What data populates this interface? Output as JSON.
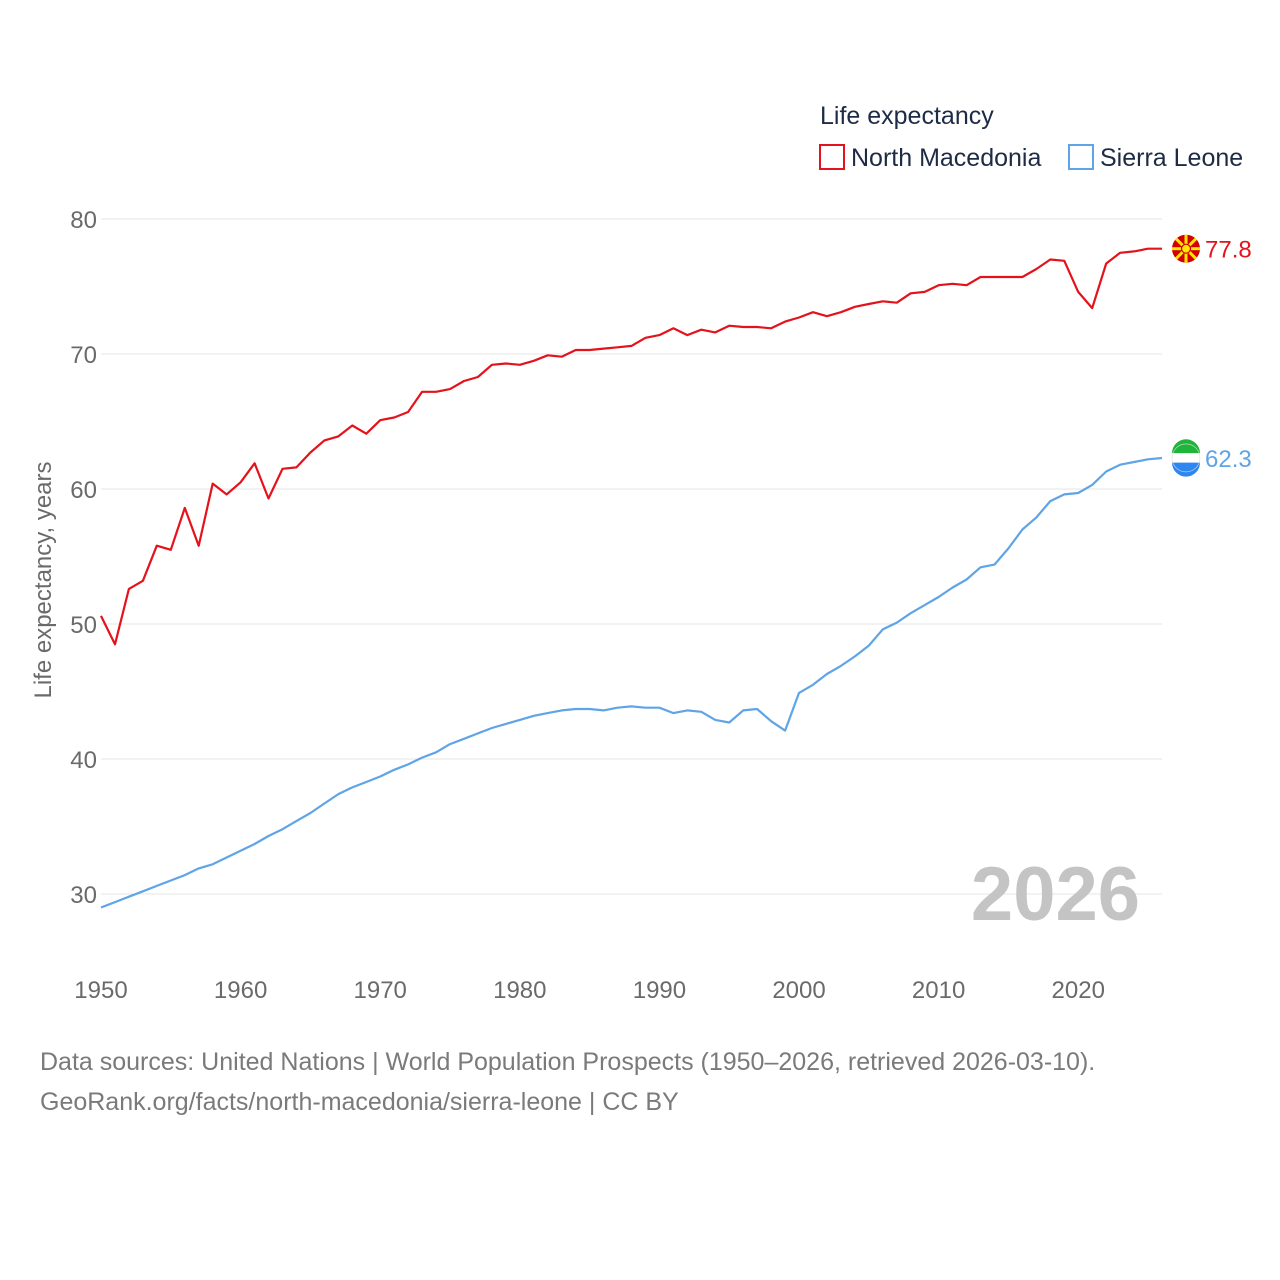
{
  "chart_data": {
    "type": "line",
    "title": "",
    "xlabel": "",
    "ylabel": "Life expectancy, years",
    "xlim": [
      1950,
      2026
    ],
    "ylim": [
      25,
      83
    ],
    "xticks": [
      1950,
      1960,
      1970,
      1980,
      1990,
      2000,
      2010,
      2020
    ],
    "yticks": [
      30,
      40,
      50,
      60,
      70,
      80
    ],
    "grid": true,
    "legend": {
      "title": "Life expectancy",
      "position": "top-right"
    },
    "watermark_year": "2026",
    "x": [
      1950,
      1951,
      1952,
      1953,
      1954,
      1955,
      1956,
      1957,
      1958,
      1959,
      1960,
      1961,
      1962,
      1963,
      1964,
      1965,
      1966,
      1967,
      1968,
      1969,
      1970,
      1971,
      1972,
      1973,
      1974,
      1975,
      1976,
      1977,
      1978,
      1979,
      1980,
      1981,
      1982,
      1983,
      1984,
      1985,
      1986,
      1987,
      1988,
      1989,
      1990,
      1991,
      1992,
      1993,
      1994,
      1995,
      1996,
      1997,
      1998,
      1999,
      2000,
      2001,
      2002,
      2003,
      2004,
      2005,
      2006,
      2007,
      2008,
      2009,
      2010,
      2011,
      2012,
      2013,
      2014,
      2015,
      2016,
      2017,
      2018,
      2019,
      2020,
      2021,
      2022,
      2023,
      2024,
      2025,
      2026
    ],
    "series": [
      {
        "name": "North Macedonia",
        "color": "#e4121b",
        "end_label": "77.8",
        "flag": "north-macedonia-flag-icon",
        "values": [
          50.6,
          48.5,
          52.6,
          53.2,
          55.8,
          55.5,
          58.6,
          55.8,
          60.4,
          59.6,
          60.5,
          61.9,
          59.3,
          61.5,
          61.6,
          62.7,
          63.6,
          63.9,
          64.7,
          64.1,
          65.1,
          65.3,
          65.7,
          67.2,
          67.2,
          67.4,
          68.0,
          68.3,
          69.2,
          69.3,
          69.2,
          69.5,
          69.9,
          69.8,
          70.3,
          70.3,
          70.4,
          70.5,
          70.6,
          71.2,
          71.4,
          71.9,
          71.4,
          71.8,
          71.6,
          72.1,
          72.0,
          72.0,
          71.9,
          72.4,
          72.7,
          73.1,
          72.8,
          73.1,
          73.5,
          73.7,
          73.9,
          73.8,
          74.5,
          74.6,
          75.1,
          75.2,
          75.1,
          75.7,
          75.7,
          75.7,
          75.7,
          76.3,
          77.0,
          76.9,
          74.6,
          73.4,
          76.7,
          77.5,
          77.6,
          77.8,
          77.8
        ]
      },
      {
        "name": "Sierra Leone",
        "color": "#5fa4e6",
        "end_label": "62.3",
        "flag": "sierra-leone-flag-icon",
        "values": [
          29.0,
          29.4,
          29.8,
          30.2,
          30.6,
          31.0,
          31.4,
          31.9,
          32.2,
          32.7,
          33.2,
          33.7,
          34.3,
          34.8,
          35.4,
          36.0,
          36.7,
          37.4,
          37.9,
          38.3,
          38.7,
          39.2,
          39.6,
          40.1,
          40.5,
          41.1,
          41.5,
          41.9,
          42.3,
          42.6,
          42.9,
          43.2,
          43.4,
          43.6,
          43.7,
          43.7,
          43.6,
          43.8,
          43.9,
          43.8,
          43.8,
          43.4,
          43.6,
          43.5,
          42.9,
          42.7,
          43.6,
          43.7,
          42.8,
          42.1,
          44.9,
          45.5,
          46.3,
          46.9,
          47.6,
          48.4,
          49.6,
          50.1,
          50.8,
          51.4,
          52.0,
          52.7,
          53.3,
          54.2,
          54.4,
          55.6,
          57.0,
          57.9,
          59.1,
          59.6,
          59.7,
          60.3,
          61.3,
          61.8,
          62.0,
          62.2,
          62.3
        ]
      }
    ]
  },
  "sources": {
    "line1": "Data sources: United Nations | World Population Prospects (1950–2026, retrieved 2026-03-10).",
    "line2": "GeoRank.org/facts/north-macedonia/sierra-leone | CC BY"
  }
}
